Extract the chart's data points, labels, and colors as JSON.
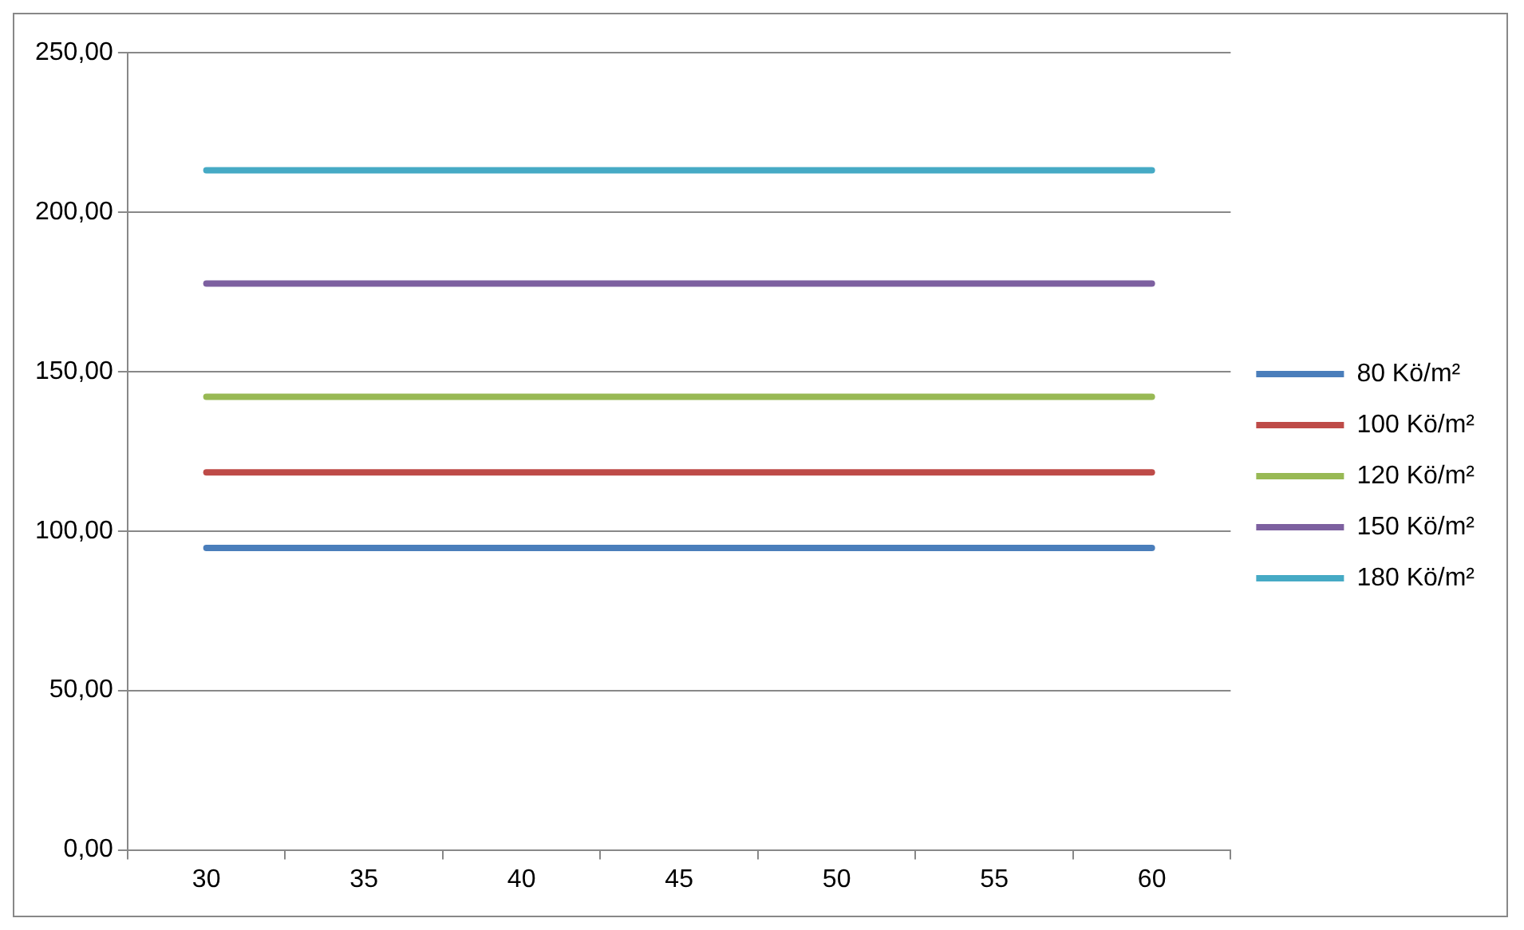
{
  "chart_data": {
    "type": "line",
    "categories": [
      "30",
      "35",
      "40",
      "45",
      "50",
      "55",
      "60"
    ],
    "series": [
      {
        "name": "80 Kö/m²",
        "color": "#4a7ebb",
        "values": [
          94.7,
          94.7,
          94.7,
          94.7,
          94.7,
          94.7,
          94.7
        ]
      },
      {
        "name": "100 Kö/m²",
        "color": "#be4b48",
        "values": [
          118.4,
          118.4,
          118.4,
          118.4,
          118.4,
          118.4,
          118.4
        ]
      },
      {
        "name": "120 Kö/m²",
        "color": "#98b954",
        "values": [
          142.1,
          142.1,
          142.1,
          142.1,
          142.1,
          142.1,
          142.1
        ]
      },
      {
        "name": "150 Kö/m²",
        "color": "#7d60a0",
        "values": [
          177.6,
          177.6,
          177.6,
          177.6,
          177.6,
          177.6,
          177.6
        ]
      },
      {
        "name": "180 Kö/m²",
        "color": "#46aac5",
        "values": [
          213.1,
          213.1,
          213.1,
          213.1,
          213.1,
          213.1,
          213.1
        ]
      }
    ],
    "ylim": [
      0,
      250
    ],
    "yticks": [
      {
        "value": 0,
        "label": "0,00"
      },
      {
        "value": 50,
        "label": "50,00"
      },
      {
        "value": 100,
        "label": "100,00"
      },
      {
        "value": 150,
        "label": "150,00"
      },
      {
        "value": 200,
        "label": "200,00"
      },
      {
        "value": 250,
        "label": "250,00"
      }
    ],
    "grid": "y",
    "legend": "right",
    "marker": "none",
    "line_style": "solid"
  }
}
